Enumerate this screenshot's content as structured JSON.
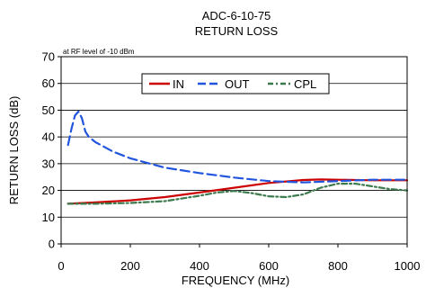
{
  "chart_data": {
    "type": "line",
    "title": "ADC-6-10-75",
    "subtitle": "RETURN LOSS",
    "annotation": "at RF level of -10 dBm",
    "xlabel": "FREQUENCY (MHz)",
    "ylabel": "RETURN LOSS (dB)",
    "xlim": [
      0,
      1000
    ],
    "ylim": [
      0,
      70
    ],
    "x_ticks": [
      "0",
      "200",
      "400",
      "600",
      "800",
      "1000"
    ],
    "y_ticks": [
      "0",
      "10",
      "20",
      "30",
      "40",
      "50",
      "60",
      "70"
    ],
    "grid": "horizontal",
    "legend_position": "top-center",
    "series": [
      {
        "name": "IN",
        "color": "#cc0000",
        "style": "solid",
        "x": [
          20,
          100,
          200,
          300,
          400,
          500,
          600,
          700,
          750,
          800,
          900,
          1000
        ],
        "y": [
          15,
          15.5,
          16.3,
          17.5,
          19.2,
          21,
          22.8,
          23.9,
          24.1,
          24,
          23.8,
          23.8
        ]
      },
      {
        "name": "OUT",
        "color": "#2255dd",
        "style": "dashed",
        "x": [
          20,
          30,
          40,
          50,
          60,
          70,
          80,
          100,
          150,
          200,
          300,
          400,
          500,
          600,
          700,
          800,
          900,
          1000
        ],
        "y": [
          37,
          43,
          48,
          49.5,
          47,
          42,
          40,
          38,
          34.5,
          32,
          28.5,
          26.5,
          24.8,
          23.5,
          23,
          23.5,
          24,
          24
        ]
      },
      {
        "name": "CPL",
        "color": "#3d7a4e",
        "style": "dash-dot",
        "x": [
          20,
          100,
          200,
          300,
          400,
          450,
          500,
          550,
          600,
          650,
          700,
          750,
          800,
          850,
          900,
          950,
          1000
        ],
        "y": [
          15,
          15,
          15.3,
          16,
          18,
          19.2,
          19.8,
          19,
          17.8,
          17.5,
          18.5,
          21,
          22.5,
          22.5,
          21.5,
          20.5,
          20
        ]
      }
    ]
  }
}
